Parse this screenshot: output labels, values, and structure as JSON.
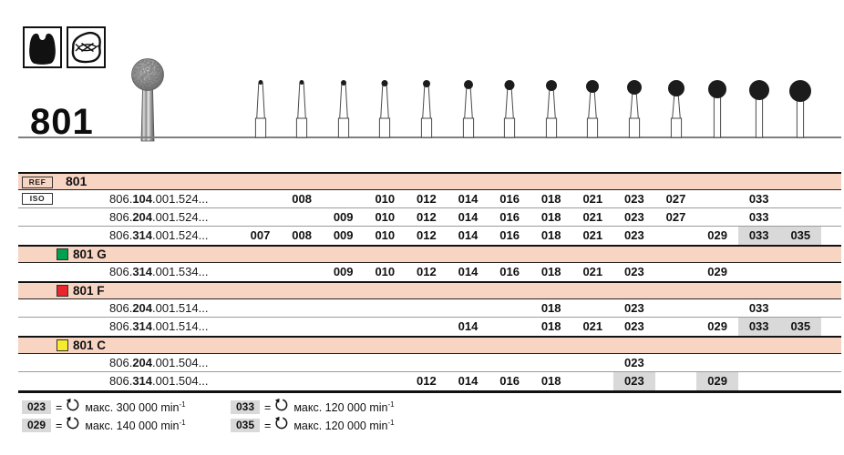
{
  "page": {
    "product_code": "801",
    "icons": [
      {
        "name": "tooth-crown-icon"
      },
      {
        "name": "occlusal-surface-icon"
      }
    ]
  },
  "columns": [
    "007",
    "008",
    "009",
    "010",
    "012",
    "014",
    "016",
    "018",
    "021",
    "023",
    "027",
    "029",
    "033",
    "035"
  ],
  "table": {
    "ref_label": "REF",
    "iso_label": "ISO",
    "sections": [
      {
        "name": "801",
        "square": null,
        "rows": [
          {
            "iso_prefix": "806.",
            "iso_bold": "104",
            "iso_suffix": ".001.524...",
            "sizes": [
              "008",
              "010",
              "012",
              "014",
              "016",
              "018",
              "021",
              "023",
              "027",
              "033"
            ],
            "gray": []
          },
          {
            "iso_prefix": "806.",
            "iso_bold": "204",
            "iso_suffix": ".001.524...",
            "sizes": [
              "009",
              "010",
              "012",
              "014",
              "016",
              "018",
              "021",
              "023",
              "027",
              "033"
            ],
            "gray": []
          },
          {
            "iso_prefix": "806.",
            "iso_bold": "314",
            "iso_suffix": ".001.524...",
            "sizes": [
              "007",
              "008",
              "009",
              "010",
              "012",
              "014",
              "016",
              "018",
              "021",
              "023",
              "029",
              "033",
              "035"
            ],
            "gray": [
              "033",
              "035"
            ]
          }
        ]
      },
      {
        "name": "801 G",
        "square": "#00a04e",
        "rows": [
          {
            "iso_prefix": "806.",
            "iso_bold": "314",
            "iso_suffix": ".001.534...",
            "sizes": [
              "009",
              "010",
              "012",
              "014",
              "016",
              "018",
              "021",
              "023",
              "029"
            ],
            "gray": []
          }
        ]
      },
      {
        "name": "801 F",
        "square": "#e8262d",
        "rows": [
          {
            "iso_prefix": "806.",
            "iso_bold": "204",
            "iso_suffix": ".001.514...",
            "sizes": [
              "018",
              "023",
              "033"
            ],
            "gray": []
          },
          {
            "iso_prefix": "806.",
            "iso_bold": "314",
            "iso_suffix": ".001.514...",
            "sizes": [
              "014",
              "018",
              "021",
              "023",
              "029",
              "033",
              "035"
            ],
            "gray": [
              "033",
              "035"
            ]
          }
        ]
      },
      {
        "name": "801 C",
        "square": "#f7ec2b",
        "rows": [
          {
            "iso_prefix": "806.",
            "iso_bold": "204",
            "iso_suffix": ".001.504...",
            "sizes": [
              "023"
            ],
            "gray": []
          },
          {
            "iso_prefix": "806.",
            "iso_bold": "314",
            "iso_suffix": ".001.504...",
            "sizes": [
              "012",
              "014",
              "016",
              "018",
              "023",
              "029"
            ],
            "gray": [
              "023",
              "029"
            ]
          }
        ]
      }
    ]
  },
  "legend": {
    "items": [
      {
        "size": "023",
        "speed": "макс. 300 000 min",
        "sup": "-1"
      },
      {
        "size": "029",
        "speed": "макс. 140 000 min",
        "sup": "-1"
      },
      {
        "size": "033",
        "speed": "макс. 120 000 min",
        "sup": "-1"
      },
      {
        "size": "035",
        "speed": "макс. 120 000 min",
        "sup": "-1"
      }
    ]
  },
  "colors": {
    "band_pink": "#f8d5c3",
    "gray_cell": "#d9d9d9",
    "green": "#00a04e",
    "red": "#e8262d",
    "yellow": "#f7ec2b"
  }
}
